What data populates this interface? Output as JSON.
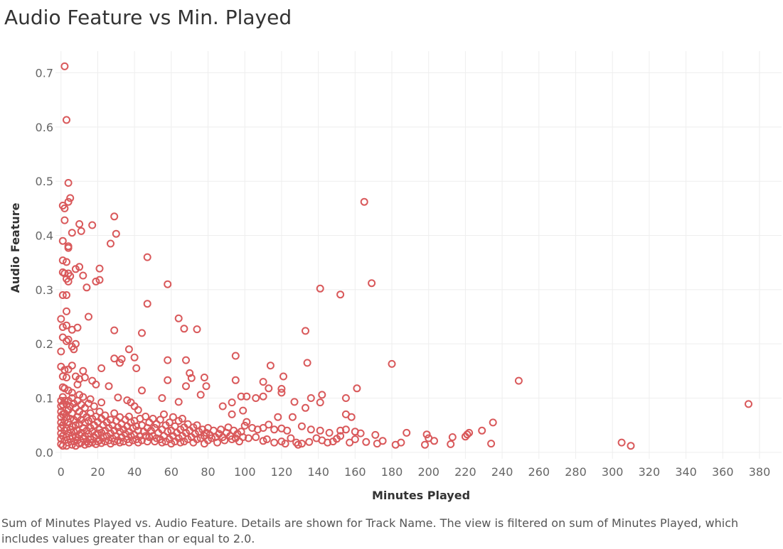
{
  "page": {
    "title": "Audio Feature vs Min. Played",
    "caption": "Sum of Minutes Played vs. Audio Feature.  Details are shown for Track Name. The view is filtered on sum of Minutes Played, which includes values greater than or equal to 2.0."
  },
  "chart_data": {
    "type": "scatter",
    "title": "Audio Feature vs Min. Played",
    "xlabel": "Minutes Played",
    "ylabel": "Audio Feature",
    "xlim": [
      -3,
      392
    ],
    "ylim": [
      -0.012,
      0.74
    ],
    "xticks": [
      "0",
      "20",
      "40",
      "60",
      "80",
      "100",
      "120",
      "140",
      "160",
      "180",
      "200",
      "220",
      "240",
      "260",
      "280",
      "300",
      "320",
      "340",
      "360",
      "380"
    ],
    "yticks": [
      "0.0",
      "0.1",
      "0.2",
      "0.3",
      "0.4",
      "0.5",
      "0.6",
      "0.7"
    ],
    "grid": true,
    "marker_color": "#d9595b",
    "points": [
      [
        2,
        0.712
      ],
      [
        3,
        0.613
      ],
      [
        4,
        0.497
      ],
      [
        5,
        0.469
      ],
      [
        4,
        0.462
      ],
      [
        1,
        0.455
      ],
      [
        2,
        0.45
      ],
      [
        2,
        0.428
      ],
      [
        10,
        0.421
      ],
      [
        17,
        0.419
      ],
      [
        29,
        0.435
      ],
      [
        30,
        0.403
      ],
      [
        11,
        0.408
      ],
      [
        6,
        0.405
      ],
      [
        1,
        0.39
      ],
      [
        27,
        0.385
      ],
      [
        4,
        0.38
      ],
      [
        4,
        0.377
      ],
      [
        47,
        0.36
      ],
      [
        1,
        0.354
      ],
      [
        3,
        0.351
      ],
      [
        8,
        0.338
      ],
      [
        10,
        0.342
      ],
      [
        21,
        0.339
      ],
      [
        1,
        0.332
      ],
      [
        2,
        0.33
      ],
      [
        4,
        0.33
      ],
      [
        5,
        0.325
      ],
      [
        12,
        0.326
      ],
      [
        3,
        0.32
      ],
      [
        4,
        0.315
      ],
      [
        19,
        0.315
      ],
      [
        21,
        0.318
      ],
      [
        14,
        0.304
      ],
      [
        58,
        0.31
      ],
      [
        3,
        0.29
      ],
      [
        1,
        0.29
      ],
      [
        47,
        0.274
      ],
      [
        3,
        0.26
      ],
      [
        15,
        0.25
      ],
      [
        64,
        0.247
      ],
      [
        0,
        0.246
      ],
      [
        3,
        0.234
      ],
      [
        1,
        0.231
      ],
      [
        6,
        0.226
      ],
      [
        9,
        0.23
      ],
      [
        29,
        0.225
      ],
      [
        44,
        0.22
      ],
      [
        67,
        0.228
      ],
      [
        74,
        0.227
      ],
      [
        1,
        0.212
      ],
      [
        4,
        0.208
      ],
      [
        3,
        0.205
      ],
      [
        6,
        0.195
      ],
      [
        8,
        0.2
      ],
      [
        7,
        0.19
      ],
      [
        37,
        0.19
      ],
      [
        0,
        0.186
      ],
      [
        29,
        0.173
      ],
      [
        33,
        0.172
      ],
      [
        32,
        0.165
      ],
      [
        40,
        0.175
      ],
      [
        58,
        0.17
      ],
      [
        68,
        0.17
      ],
      [
        41,
        0.155
      ],
      [
        0,
        0.158
      ],
      [
        2,
        0.152
      ],
      [
        4,
        0.153
      ],
      [
        6,
        0.16
      ],
      [
        12,
        0.15
      ],
      [
        22,
        0.155
      ],
      [
        1,
        0.14
      ],
      [
        3,
        0.138
      ],
      [
        8,
        0.14
      ],
      [
        10,
        0.135
      ],
      [
        13,
        0.138
      ],
      [
        9,
        0.125
      ],
      [
        17,
        0.132
      ],
      [
        19,
        0.125
      ],
      [
        26,
        0.122
      ],
      [
        58,
        0.133
      ],
      [
        70,
        0.146
      ],
      [
        71,
        0.137
      ],
      [
        68,
        0.122
      ],
      [
        78,
        0.138
      ],
      [
        79,
        0.122
      ],
      [
        1,
        0.12
      ],
      [
        2,
        0.118
      ],
      [
        4,
        0.114
      ],
      [
        6,
        0.11
      ],
      [
        10,
        0.106
      ],
      [
        12,
        0.102
      ],
      [
        16,
        0.098
      ],
      [
        22,
        0.092
      ],
      [
        31,
        0.101
      ],
      [
        36,
        0.096
      ],
      [
        38,
        0.092
      ],
      [
        44,
        0.114
      ],
      [
        64,
        0.093
      ],
      [
        55,
        0.1
      ],
      [
        76,
        0.106
      ],
      [
        95,
        0.178
      ],
      [
        114,
        0.16
      ],
      [
        95,
        0.133
      ],
      [
        110,
        0.13
      ],
      [
        113,
        0.118
      ],
      [
        121,
        0.14
      ],
      [
        120,
        0.117
      ],
      [
        120,
        0.11
      ],
      [
        127,
        0.093
      ],
      [
        133,
        0.224
      ],
      [
        134,
        0.165
      ],
      [
        141,
        0.302
      ],
      [
        152,
        0.291
      ],
      [
        165,
        0.462
      ],
      [
        169,
        0.312
      ],
      [
        180,
        0.163
      ],
      [
        142,
        0.106
      ],
      [
        136,
        0.1
      ],
      [
        141,
        0.092
      ],
      [
        155,
        0.1
      ],
      [
        161,
        0.118
      ],
      [
        249,
        0.132
      ],
      [
        374,
        0.089
      ],
      [
        98,
        0.103
      ],
      [
        101,
        0.103
      ],
      [
        106,
        0.1
      ],
      [
        110,
        0.103
      ],
      [
        88,
        0.085
      ],
      [
        93,
        0.092
      ],
      [
        99,
        0.077
      ],
      [
        93,
        0.07
      ],
      [
        118,
        0.065
      ],
      [
        126,
        0.065
      ],
      [
        133,
        0.082
      ],
      [
        155,
        0.07
      ],
      [
        158,
        0.065
      ],
      [
        100,
        0.049
      ],
      [
        101,
        0.056
      ],
      [
        104,
        0.045
      ],
      [
        107,
        0.042
      ],
      [
        110,
        0.045
      ],
      [
        113,
        0.051
      ],
      [
        116,
        0.042
      ],
      [
        120,
        0.044
      ],
      [
        123,
        0.04
      ],
      [
        131,
        0.048
      ],
      [
        136,
        0.042
      ],
      [
        141,
        0.04
      ],
      [
        146,
        0.036
      ],
      [
        152,
        0.04
      ],
      [
        155,
        0.042
      ],
      [
        160,
        0.038
      ],
      [
        163,
        0.035
      ],
      [
        171,
        0.032
      ],
      [
        188,
        0.036
      ],
      [
        199,
        0.033
      ],
      [
        200,
        0.026
      ],
      [
        213,
        0.028
      ],
      [
        221,
        0.033
      ],
      [
        222,
        0.036
      ],
      [
        229,
        0.04
      ],
      [
        235,
        0.055
      ],
      [
        234,
        0.016
      ],
      [
        305,
        0.018
      ],
      [
        310,
        0.012
      ],
      [
        102,
        0.026
      ],
      [
        106,
        0.028
      ],
      [
        110,
        0.021
      ],
      [
        112,
        0.024
      ],
      [
        116,
        0.018
      ],
      [
        120,
        0.02
      ],
      [
        122,
        0.016
      ],
      [
        125,
        0.026
      ],
      [
        128,
        0.018
      ],
      [
        129,
        0.014
      ],
      [
        131,
        0.016
      ],
      [
        135,
        0.019
      ],
      [
        139,
        0.026
      ],
      [
        142,
        0.022
      ],
      [
        145,
        0.018
      ],
      [
        148,
        0.02
      ],
      [
        150,
        0.025
      ],
      [
        152,
        0.03
      ],
      [
        157,
        0.018
      ],
      [
        160,
        0.024
      ],
      [
        166,
        0.019
      ],
      [
        172,
        0.016
      ],
      [
        175,
        0.021
      ],
      [
        182,
        0.014
      ],
      [
        185,
        0.018
      ],
      [
        198,
        0.014
      ],
      [
        203,
        0.021
      ],
      [
        212,
        0.015
      ],
      [
        220,
        0.029
      ],
      [
        0,
        0.095
      ],
      [
        0,
        0.085
      ],
      [
        0,
        0.075
      ],
      [
        0,
        0.065
      ],
      [
        0,
        0.055
      ],
      [
        0,
        0.045
      ],
      [
        0,
        0.035
      ],
      [
        0,
        0.025
      ],
      [
        0,
        0.015
      ],
      [
        1,
        0.102
      ],
      [
        1,
        0.088
      ],
      [
        1,
        0.07
      ],
      [
        1,
        0.05
      ],
      [
        1,
        0.03
      ],
      [
        1,
        0.012
      ],
      [
        2,
        0.095
      ],
      [
        2,
        0.072
      ],
      [
        2,
        0.058
      ],
      [
        2,
        0.04
      ],
      [
        2,
        0.022
      ],
      [
        3,
        0.088
      ],
      [
        3,
        0.065
      ],
      [
        3,
        0.045
      ],
      [
        3,
        0.028
      ],
      [
        3,
        0.012
      ],
      [
        4,
        0.095
      ],
      [
        4,
        0.078
      ],
      [
        4,
        0.055
      ],
      [
        4,
        0.035
      ],
      [
        4,
        0.018
      ],
      [
        5,
        0.085
      ],
      [
        5,
        0.062
      ],
      [
        5,
        0.042
      ],
      [
        5,
        0.025
      ],
      [
        6,
        0.1
      ],
      [
        6,
        0.072
      ],
      [
        6,
        0.048
      ],
      [
        6,
        0.03
      ],
      [
        6,
        0.014
      ],
      [
        7,
        0.09
      ],
      [
        7,
        0.06
      ],
      [
        7,
        0.038
      ],
      [
        7,
        0.02
      ],
      [
        8,
        0.082
      ],
      [
        8,
        0.05
      ],
      [
        8,
        0.028
      ],
      [
        8,
        0.012
      ],
      [
        9,
        0.095
      ],
      [
        9,
        0.065
      ],
      [
        9,
        0.04
      ],
      [
        9,
        0.022
      ],
      [
        10,
        0.075
      ],
      [
        10,
        0.052
      ],
      [
        10,
        0.032
      ],
      [
        10,
        0.016
      ],
      [
        11,
        0.088
      ],
      [
        11,
        0.06
      ],
      [
        11,
        0.036
      ],
      [
        11,
        0.018
      ],
      [
        12,
        0.07
      ],
      [
        12,
        0.045
      ],
      [
        12,
        0.025
      ],
      [
        13,
        0.082
      ],
      [
        13,
        0.055
      ],
      [
        13,
        0.03
      ],
      [
        13,
        0.014
      ],
      [
        14,
        0.065
      ],
      [
        14,
        0.04
      ],
      [
        14,
        0.02
      ],
      [
        15,
        0.09
      ],
      [
        15,
        0.058
      ],
      [
        15,
        0.034
      ],
      [
        15,
        0.016
      ],
      [
        16,
        0.072
      ],
      [
        16,
        0.045
      ],
      [
        16,
        0.024
      ],
      [
        17,
        0.062
      ],
      [
        17,
        0.038
      ],
      [
        17,
        0.018
      ],
      [
        18,
        0.085
      ],
      [
        18,
        0.05
      ],
      [
        18,
        0.028
      ],
      [
        19,
        0.066
      ],
      [
        19,
        0.032
      ],
      [
        19,
        0.015
      ],
      [
        20,
        0.056
      ],
      [
        20,
        0.035
      ],
      [
        20,
        0.02
      ],
      [
        21,
        0.075
      ],
      [
        21,
        0.042
      ],
      [
        21,
        0.022
      ],
      [
        22,
        0.062
      ],
      [
        22,
        0.036
      ],
      [
        22,
        0.017
      ],
      [
        23,
        0.05
      ],
      [
        23,
        0.028
      ],
      [
        24,
        0.068
      ],
      [
        24,
        0.04
      ],
      [
        24,
        0.02
      ],
      [
        25,
        0.055
      ],
      [
        25,
        0.03
      ],
      [
        26,
        0.045
      ],
      [
        26,
        0.022
      ],
      [
        27,
        0.06
      ],
      [
        27,
        0.035
      ],
      [
        27,
        0.016
      ],
      [
        28,
        0.05
      ],
      [
        28,
        0.026
      ],
      [
        29,
        0.072
      ],
      [
        29,
        0.04
      ],
      [
        29,
        0.02
      ],
      [
        30,
        0.058
      ],
      [
        30,
        0.03
      ],
      [
        31,
        0.046
      ],
      [
        31,
        0.022
      ],
      [
        32,
        0.065
      ],
      [
        32,
        0.038
      ],
      [
        32,
        0.018
      ],
      [
        33,
        0.052
      ],
      [
        33,
        0.028
      ],
      [
        34,
        0.042
      ],
      [
        34,
        0.02
      ],
      [
        35,
        0.06
      ],
      [
        35,
        0.034
      ],
      [
        36,
        0.048
      ],
      [
        36,
        0.024
      ],
      [
        37,
        0.066
      ],
      [
        37,
        0.038
      ],
      [
        37,
        0.018
      ],
      [
        38,
        0.055
      ],
      [
        38,
        0.03
      ],
      [
        39,
        0.045
      ],
      [
        39,
        0.022
      ],
      [
        40,
        0.085
      ],
      [
        40,
        0.058
      ],
      [
        40,
        0.032
      ],
      [
        41,
        0.048
      ],
      [
        41,
        0.024
      ],
      [
        42,
        0.078
      ],
      [
        42,
        0.04
      ],
      [
        42,
        0.018
      ],
      [
        43,
        0.062
      ],
      [
        43,
        0.03
      ],
      [
        44,
        0.05
      ],
      [
        44,
        0.022
      ],
      [
        45,
        0.038
      ],
      [
        46,
        0.066
      ],
      [
        46,
        0.03
      ],
      [
        47,
        0.045
      ],
      [
        47,
        0.02
      ],
      [
        48,
        0.055
      ],
      [
        48,
        0.028
      ],
      [
        49,
        0.04
      ],
      [
        50,
        0.062
      ],
      [
        50,
        0.03
      ],
      [
        51,
        0.045
      ],
      [
        51,
        0.02
      ],
      [
        52,
        0.052
      ],
      [
        52,
        0.026
      ],
      [
        53,
        0.036
      ],
      [
        54,
        0.06
      ],
      [
        54,
        0.024
      ],
      [
        55,
        0.042
      ],
      [
        55,
        0.018
      ],
      [
        56,
        0.07
      ],
      [
        56,
        0.03
      ],
      [
        57,
        0.05
      ],
      [
        57,
        0.02
      ],
      [
        58,
        0.038
      ],
      [
        59,
        0.055
      ],
      [
        59,
        0.024
      ],
      [
        60,
        0.04
      ],
      [
        60,
        0.016
      ],
      [
        61,
        0.065
      ],
      [
        61,
        0.03
      ],
      [
        62,
        0.048
      ],
      [
        62,
        0.02
      ],
      [
        63,
        0.036
      ],
      [
        64,
        0.058
      ],
      [
        64,
        0.026
      ],
      [
        65,
        0.042
      ],
      [
        65,
        0.018
      ],
      [
        66,
        0.062
      ],
      [
        66,
        0.03
      ],
      [
        67,
        0.046
      ],
      [
        67,
        0.02
      ],
      [
        68,
        0.036
      ],
      [
        69,
        0.052
      ],
      [
        69,
        0.024
      ],
      [
        70,
        0.04
      ],
      [
        71,
        0.028
      ],
      [
        72,
        0.046
      ],
      [
        72,
        0.018
      ],
      [
        73,
        0.034
      ],
      [
        74,
        0.05
      ],
      [
        74,
        0.024
      ],
      [
        75,
        0.038
      ],
      [
        76,
        0.026
      ],
      [
        77,
        0.042
      ],
      [
        78,
        0.03
      ],
      [
        78,
        0.016
      ],
      [
        79,
        0.036
      ],
      [
        80,
        0.045
      ],
      [
        80,
        0.022
      ],
      [
        81,
        0.032
      ],
      [
        82,
        0.026
      ],
      [
        83,
        0.04
      ],
      [
        84,
        0.028
      ],
      [
        85,
        0.018
      ],
      [
        86,
        0.034
      ],
      [
        87,
        0.042
      ],
      [
        88,
        0.028
      ],
      [
        89,
        0.022
      ],
      [
        90,
        0.036
      ],
      [
        91,
        0.046
      ],
      [
        92,
        0.03
      ],
      [
        93,
        0.024
      ],
      [
        94,
        0.04
      ],
      [
        95,
        0.026
      ],
      [
        96,
        0.034
      ],
      [
        97,
        0.02
      ],
      [
        98,
        0.038
      ],
      [
        99,
        0.028
      ]
    ]
  }
}
